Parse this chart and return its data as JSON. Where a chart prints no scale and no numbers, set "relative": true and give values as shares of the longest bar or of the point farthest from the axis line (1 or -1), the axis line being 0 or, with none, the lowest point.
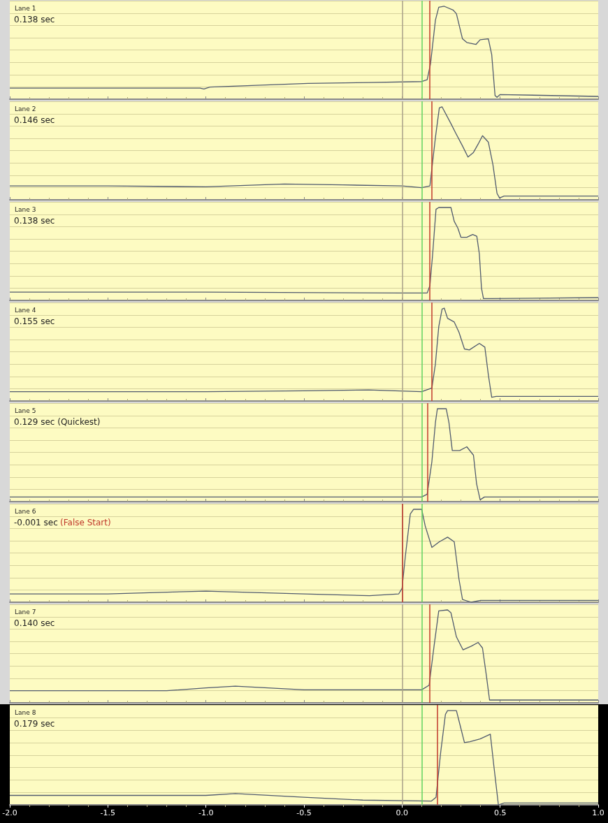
{
  "chart_data": [
    {
      "type": "line",
      "title": "Lane 1",
      "annotations": [
        "0.138 sec"
      ],
      "relative": true,
      "tick_labels": false,
      "xlim": [
        -2,
        1
      ],
      "xticks": [
        -2,
        -1.5,
        -1,
        -0.5,
        0,
        0.5,
        1
      ],
      "x": [
        -2,
        -1.5,
        -1.03,
        -1.01,
        -0.98,
        -0.48,
        -0.17,
        0.1,
        0.128,
        0.145,
        0.17,
        0.187,
        0.215,
        0.26,
        0.277,
        0.308,
        0.33,
        0.377,
        0.398,
        0.44,
        0.457,
        0.474,
        0.484,
        0.5,
        1
      ],
      "series": [
        {
          "color": "#505a6e",
          "values": [
            0.12,
            0.12,
            0.12,
            0.11,
            0.13,
            0.17,
            0.18,
            0.19,
            0.21,
            0.38,
            0.85,
            0.99,
            1,
            0.96,
            0.92,
            0.65,
            0.61,
            0.59,
            0.64,
            0.65,
            0.48,
            0.04,
            0.02,
            0.05,
            0.03
          ]
        }
      ],
      "ref_lines": [
        {
          "axis": "x",
          "value": 0,
          "color": "#a8a088"
        },
        {
          "axis": "x",
          "value": 0.1,
          "color": "#5fd35f"
        },
        {
          "axis": "x",
          "value": 0.138,
          "color": "#c0392b"
        }
      ]
    },
    {
      "type": "line",
      "title": "Lane 2",
      "annotations": [
        "0.146 sec"
      ],
      "relative": true,
      "tick_labels": false,
      "xlim": [
        -2,
        1
      ],
      "xticks": [
        -2,
        -1.5,
        -1,
        -0.5,
        0,
        0.5,
        1
      ],
      "x": [
        -2,
        -1.5,
        -1.0,
        -0.6,
        -0.3,
        0,
        0.1,
        0.142,
        0.17,
        0.19,
        0.204,
        0.249,
        0.273,
        0.308,
        0.336,
        0.364,
        0.388,
        0.41,
        0.44,
        0.463,
        0.484,
        0.497,
        0.52,
        1
      ],
      "series": [
        {
          "color": "#505a6e",
          "values": [
            0.15,
            0.15,
            0.14,
            0.17,
            0.16,
            0.15,
            0.13,
            0.15,
            0.67,
            0.99,
            1,
            0.82,
            0.72,
            0.58,
            0.46,
            0.51,
            0.6,
            0.69,
            0.62,
            0.38,
            0.07,
            0.02,
            0.04,
            0.04
          ]
        }
      ],
      "ref_lines": [
        {
          "axis": "x",
          "value": 0,
          "color": "#a8a088"
        },
        {
          "axis": "x",
          "value": 0.1,
          "color": "#5fd35f"
        },
        {
          "axis": "x",
          "value": 0.146,
          "color": "#c0392b"
        }
      ]
    },
    {
      "type": "line",
      "title": "Lane 3",
      "annotations": [
        "0.138 sec"
      ],
      "relative": true,
      "tick_labels": false,
      "xlim": [
        -2,
        1
      ],
      "xticks": [
        -2,
        -1.5,
        -1,
        -0.5,
        0,
        0.5,
        1
      ],
      "x": [
        -2,
        -1,
        0,
        0.128,
        0.142,
        0.156,
        0.173,
        0.187,
        0.249,
        0.266,
        0.284,
        0.3,
        0.33,
        0.36,
        0.381,
        0.394,
        0.405,
        0.415,
        0.45,
        1
      ],
      "series": [
        {
          "color": "#505a6e",
          "values": [
            0.09,
            0.09,
            0.08,
            0.08,
            0.16,
            0.5,
            0.98,
            1,
            1,
            0.85,
            0.78,
            0.68,
            0.68,
            0.71,
            0.69,
            0.5,
            0.13,
            0.02,
            0.02,
            0.03
          ]
        }
      ],
      "ref_lines": [
        {
          "axis": "x",
          "value": 0,
          "color": "#a8a088"
        },
        {
          "axis": "x",
          "value": 0.1,
          "color": "#5fd35f"
        },
        {
          "axis": "x",
          "value": 0.138,
          "color": "#c0392b"
        }
      ]
    },
    {
      "type": "line",
      "title": "Lane 4",
      "annotations": [
        "0.155 sec"
      ],
      "relative": true,
      "tick_labels": false,
      "xlim": [
        -2,
        1
      ],
      "xticks": [
        -2,
        -1.5,
        -1,
        -0.5,
        0,
        0.5,
        1
      ],
      "x": [
        -2,
        -1,
        -0.5,
        -0.17,
        0.1,
        0.152,
        0.17,
        0.187,
        0.204,
        0.215,
        0.232,
        0.266,
        0.29,
        0.318,
        0.343,
        0.394,
        0.422,
        0.44,
        0.457,
        0.48,
        1
      ],
      "series": [
        {
          "color": "#505a6e",
          "values": [
            0.1,
            0.1,
            0.11,
            0.12,
            0.1,
            0.14,
            0.4,
            0.8,
            0.99,
            1,
            0.89,
            0.85,
            0.74,
            0.56,
            0.55,
            0.62,
            0.58,
            0.28,
            0.04,
            0.05,
            0.05
          ]
        }
      ],
      "ref_lines": [
        {
          "axis": "x",
          "value": 0,
          "color": "#a8a088"
        },
        {
          "axis": "x",
          "value": 0.1,
          "color": "#5fd35f"
        },
        {
          "axis": "x",
          "value": 0.155,
          "color": "#c0392b"
        }
      ]
    },
    {
      "type": "line",
      "title": "Lane 5",
      "annotations": [
        "0.129 sec (Quickest)"
      ],
      "relative": true,
      "tick_labels": false,
      "xlim": [
        -2,
        1
      ],
      "xticks": [
        -2,
        -1.5,
        -1,
        -0.5,
        0,
        0.5,
        1
      ],
      "x": [
        -2,
        -1,
        0,
        0.1,
        0.128,
        0.152,
        0.17,
        0.18,
        0.225,
        0.239,
        0.256,
        0.294,
        0.33,
        0.364,
        0.38,
        0.398,
        0.42,
        1
      ],
      "series": [
        {
          "color": "#505a6e",
          "values": [
            0.05,
            0.05,
            0.05,
            0.05,
            0.08,
            0.43,
            0.85,
            1,
            1,
            0.85,
            0.55,
            0.55,
            0.59,
            0.5,
            0.19,
            0.02,
            0.05,
            0.05
          ]
        }
      ],
      "ref_lines": [
        {
          "axis": "x",
          "value": 0,
          "color": "#a8a088"
        },
        {
          "axis": "x",
          "value": 0.1,
          "color": "#5fd35f"
        },
        {
          "axis": "x",
          "value": 0.129,
          "color": "#c0392b"
        }
      ]
    },
    {
      "type": "line",
      "title": "Lane 6",
      "annotations": [
        "-0.001 sec",
        "(False Start)"
      ],
      "relative": true,
      "tick_labels": false,
      "xlim": [
        -2,
        1
      ],
      "xticks": [
        -2,
        -1.5,
        -1,
        -0.5,
        0,
        0.5,
        1
      ],
      "x": [
        -2,
        -1.5,
        -1.0,
        -0.5,
        -0.166,
        -0.017,
        0,
        0.017,
        0.042,
        0.059,
        0.1,
        0.118,
        0.152,
        0.19,
        0.232,
        0.266,
        0.29,
        0.308,
        0.353,
        0.4,
        1
      ],
      "series": [
        {
          "color": "#505a6e",
          "values": [
            0.09,
            0.09,
            0.12,
            0.09,
            0.07,
            0.09,
            0.15,
            0.5,
            0.95,
            1,
            1,
            0.82,
            0.59,
            0.65,
            0.7,
            0.65,
            0.25,
            0.03,
            0,
            0.02,
            0.02
          ]
        }
      ],
      "ref_lines": [
        {
          "axis": "x",
          "value": 0,
          "color": "#a8a088"
        },
        {
          "axis": "x",
          "value": 0.1,
          "color": "#5fd35f"
        },
        {
          "axis": "x",
          "value": -0.001,
          "color": "#c0392b"
        }
      ]
    },
    {
      "type": "line",
      "title": "Lane 7",
      "annotations": [
        "0.140 sec"
      ],
      "relative": true,
      "tick_labels": false,
      "xlim": [
        -2,
        1
      ],
      "xticks": [
        -2,
        -1.5,
        -1,
        -0.5,
        0,
        0.5,
        1
      ],
      "x": [
        -2,
        -1.2,
        -1.0,
        -0.85,
        -0.5,
        -0.17,
        0.1,
        0.138,
        0.163,
        0.187,
        0.232,
        0.249,
        0.277,
        0.311,
        0.353,
        0.388,
        0.41,
        0.43,
        0.446,
        0.5,
        1
      ],
      "series": [
        {
          "color": "#505a6e",
          "values": [
            0.13,
            0.13,
            0.16,
            0.18,
            0.14,
            0.14,
            0.14,
            0.19,
            0.61,
            0.99,
            1,
            0.97,
            0.71,
            0.57,
            0.61,
            0.65,
            0.59,
            0.29,
            0.03,
            0.03,
            0.03
          ]
        }
      ],
      "ref_lines": [
        {
          "axis": "x",
          "value": 0,
          "color": "#a8a088"
        },
        {
          "axis": "x",
          "value": 0.1,
          "color": "#5fd35f"
        },
        {
          "axis": "x",
          "value": 0.14,
          "color": "#c0392b"
        }
      ]
    },
    {
      "type": "line",
      "title": "Lane 8",
      "annotations": [
        "0.179 sec"
      ],
      "relative": true,
      "tick_labels": "x",
      "xlim": [
        -2,
        1
      ],
      "xticks": [
        {
          "value": -2,
          "label": "-2.0"
        },
        -1.5,
        {
          "value": -1,
          "label": "-1.0"
        },
        -0.5,
        {
          "value": 0,
          "label": "0.0"
        },
        0.5,
        {
          "value": 1,
          "label": "1.0"
        }
      ],
      "x": [
        -2,
        -1.5,
        -1.0,
        -0.85,
        -0.5,
        -0.2,
        0.15,
        0.173,
        0.197,
        0.221,
        0.232,
        0.277,
        0.294,
        0.318,
        0.346,
        0.398,
        0.45,
        0.467,
        0.491,
        0.52,
        1
      ],
      "series": [
        {
          "color": "#505a6e",
          "values": [
            0.1,
            0.1,
            0.1,
            0.12,
            0.08,
            0.05,
            0.04,
            0.08,
            0.56,
            0.96,
            1,
            1,
            0.86,
            0.66,
            0.67,
            0.7,
            0.75,
            0.43,
            0,
            0.02,
            0.02
          ]
        }
      ],
      "ref_lines": [
        {
          "axis": "x",
          "value": 0,
          "color": "#a8a088"
        },
        {
          "axis": "x",
          "value": 0.1,
          "color": "#5fd35f"
        },
        {
          "axis": "x",
          "value": 0.179,
          "color": "#c0392b"
        }
      ]
    }
  ]
}
